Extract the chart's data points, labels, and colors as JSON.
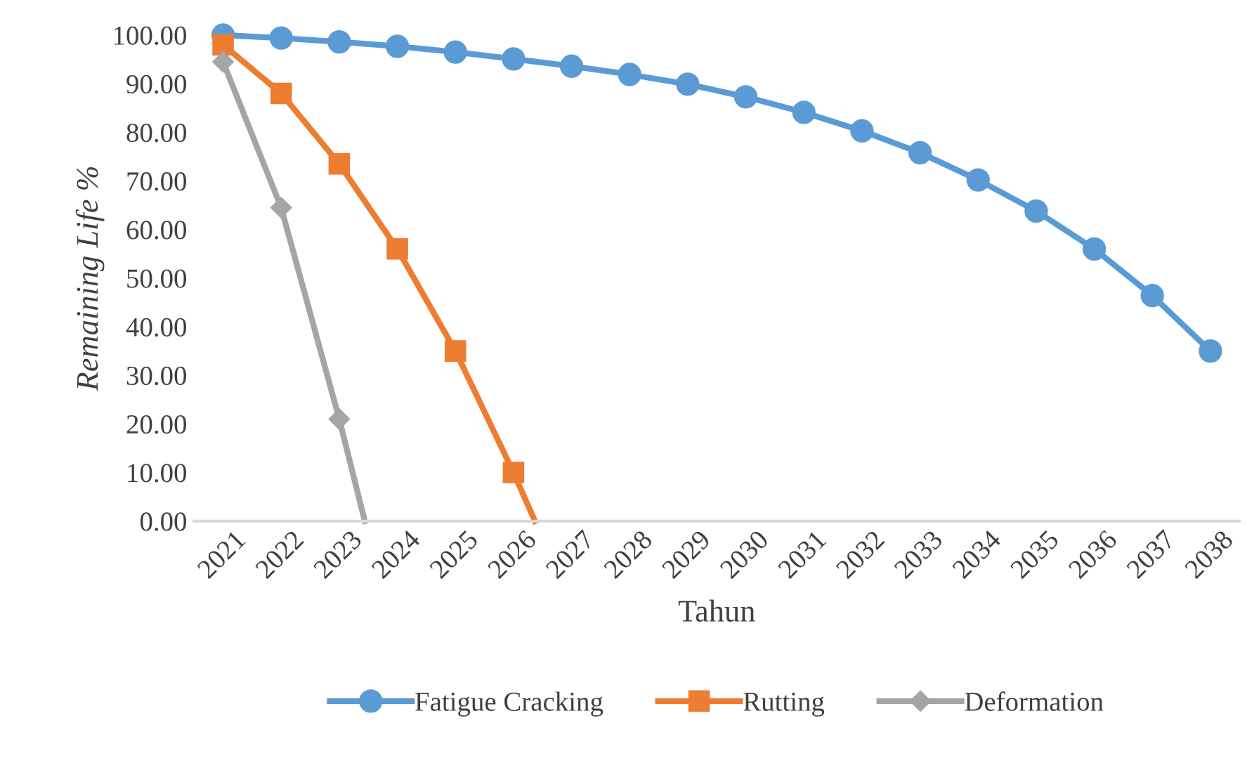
{
  "chart_data": {
    "type": "line",
    "xlabel": "Tahun",
    "ylabel": "Remaining Life %",
    "xlim": [
      2020.5,
      2038.5
    ],
    "xticks": [
      2021,
      2022,
      2023,
      2024,
      2025,
      2026,
      2027,
      2028,
      2029,
      2030,
      2031,
      2032,
      2033,
      2034,
      2035,
      2036,
      2037,
      2038
    ],
    "ylim": [
      0,
      100
    ],
    "yticks": [
      {
        "value": 0,
        "label": "0.00"
      },
      {
        "value": 10,
        "label": "10.00"
      },
      {
        "value": 20,
        "label": "20.00"
      },
      {
        "value": 30,
        "label": "30.00"
      },
      {
        "value": 40,
        "label": "40.00"
      },
      {
        "value": 50,
        "label": "50.00"
      },
      {
        "value": 60,
        "label": "60.00"
      },
      {
        "value": 70,
        "label": "70.00"
      },
      {
        "value": 80,
        "label": "80.00"
      },
      {
        "value": 90,
        "label": "90.00"
      },
      {
        "value": 100,
        "label": "100.00"
      }
    ],
    "grid": false,
    "legend": "bottom",
    "series": [
      {
        "name": "Fatigue Cracking",
        "color": "#5b9bd5",
        "marker": "circle",
        "x": [
          2021,
          2022,
          2023,
          2024,
          2025,
          2026,
          2027,
          2028,
          2029,
          2030,
          2031,
          2032,
          2033,
          2034,
          2035,
          2036,
          2037,
          2038
        ],
        "values": [
          100,
          99.4,
          98.6,
          97.7,
          96.5,
          95.1,
          93.6,
          91.9,
          89.9,
          87.3,
          84.1,
          80.3,
          75.8,
          70.2,
          63.8,
          56.0,
          46.4,
          35.0
        ]
      },
      {
        "name": "Rutting",
        "color": "#ed7d31",
        "marker": "square",
        "x": [
          2021,
          2022,
          2023,
          2024,
          2025,
          2026,
          2026.37
        ],
        "values": [
          98.0,
          88.0,
          73.5,
          56.0,
          35.0,
          10.0,
          0
        ]
      },
      {
        "name": "Deformation",
        "color": "#a5a5a5",
        "marker": "diamond",
        "x": [
          2021,
          2022,
          2023,
          2023.44
        ],
        "values": [
          94.5,
          64.5,
          21.0,
          0
        ]
      }
    ]
  }
}
